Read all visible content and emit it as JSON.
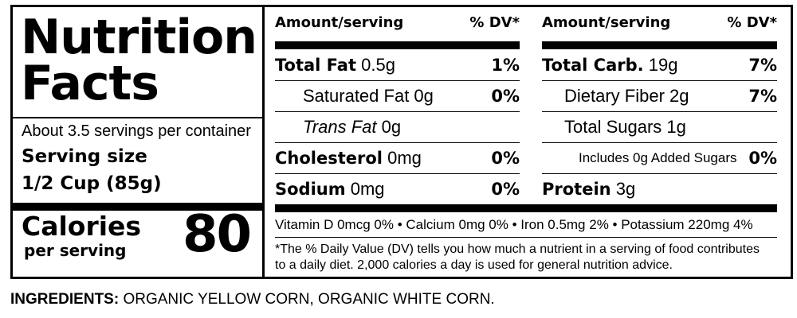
{
  "title_line1": "Nutrition",
  "title_line2": "Facts",
  "servings_per_container": "About 3.5 servings per container",
  "serving_size_label": "Serving size",
  "serving_size_value": "1/2 Cup (85g)",
  "calories_label": "Calories",
  "calories_sub": "per serving",
  "calories_value": "80",
  "left_header": {
    "amount": "Amount/serving",
    "dv": "% DV*"
  },
  "right_header": {
    "amount": "Amount/serving",
    "dv": "% DV*"
  },
  "left_rows": [
    {
      "bold": "Total Fat",
      "amount": " 0.5g",
      "dv": "1%"
    },
    {
      "bold": "",
      "amount": "Saturated Fat 0g",
      "dv": "0%"
    },
    {
      "bold": "",
      "italic": "Trans Fat",
      "amount": " 0g",
      "dv": ""
    },
    {
      "bold": "Cholesterol",
      "amount": " 0mg",
      "dv": "0%"
    },
    {
      "bold": "Sodium",
      "amount": " 0mg",
      "dv": "0%"
    }
  ],
  "right_rows": [
    {
      "bold": "Total Carb.",
      "amount": " 19g",
      "dv": "7%"
    },
    {
      "bold": "",
      "amount": "Dietary Fiber 2g",
      "dv": "7%"
    },
    {
      "bold": "",
      "amount": "Total Sugars 1g",
      "dv": ""
    },
    {
      "bold": "",
      "amount": "Includes 0g Added Sugars",
      "dv": "0%"
    },
    {
      "bold": "Protein",
      "amount": " 3g",
      "dv": ""
    }
  ],
  "vitamins": "Vitamin D 0mcg 0%  •  Calcium 0mg 0% • Iron 0.5mg 2%  • Potassium 220mg 4%",
  "footnote_line1": "*The % Daily Value (DV) tells you how much a nutrient in a serving of food contributes",
  "footnote_line2": "to a daily diet. 2,000 calories a day is used for general nutrition advice.",
  "ingredients_label": "INGREDIENTS:",
  "ingredients_text": " ORGANIC YELLOW CORN, ORGANIC WHITE CORN."
}
